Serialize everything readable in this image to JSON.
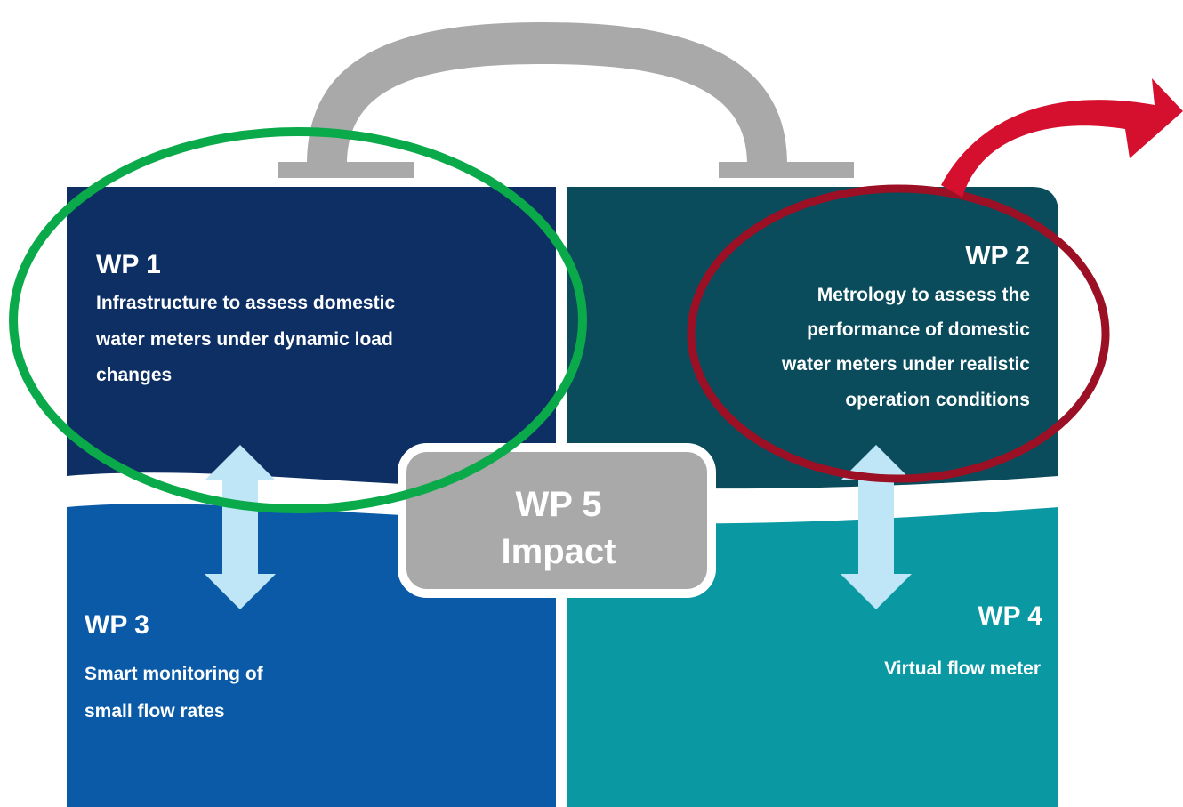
{
  "nodes": [
    {
      "title": "WP 1",
      "lines": [
        "Infrastructure to assess domestic",
        "water meters under dynamic load",
        "changes"
      ]
    },
    {
      "title": "WP 2",
      "lines": [
        "Metrology to assess the",
        "performance of domestic",
        "water meters under realistic",
        "operation conditions"
      ]
    },
    {
      "title": "WP 3",
      "lines": [
        "Smart monitoring of",
        "small flow rates"
      ]
    },
    {
      "title": "WP 4",
      "lines": [
        "Virtual flow meter"
      ]
    }
  ],
  "center": {
    "title": "WP 5",
    "subtitle": "Impact"
  }
}
